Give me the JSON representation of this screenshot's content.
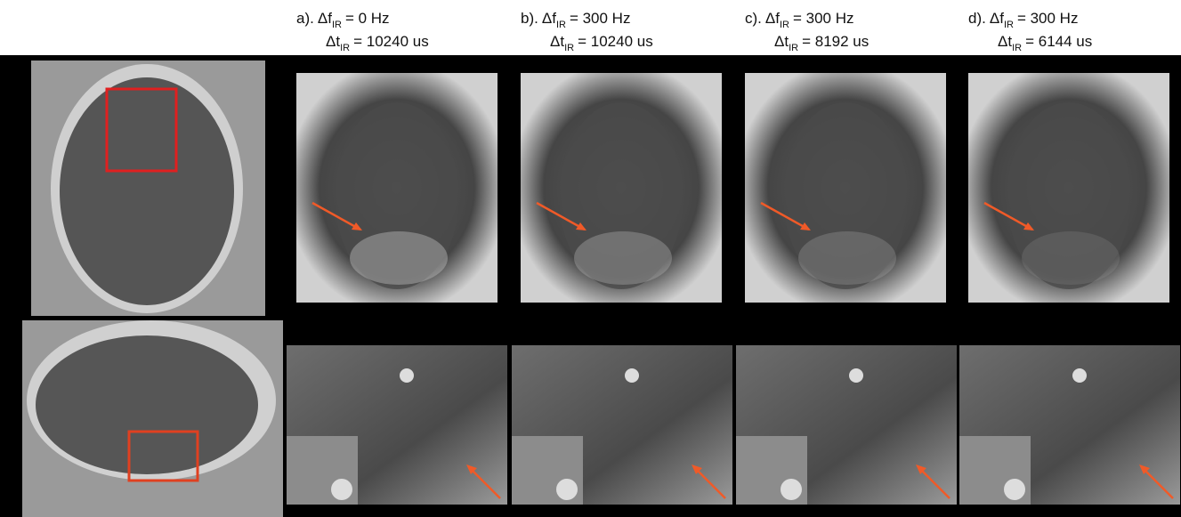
{
  "panels": [
    {
      "label": "a).",
      "freq_symbol": "Δf",
      "subscript": "IR",
      "freq_value": "= 0 Hz",
      "time_symbol": "Δt",
      "time_value": "= 10240 us"
    },
    {
      "label": "b).",
      "freq_symbol": "Δf",
      "subscript": "IR",
      "freq_value": "= 300 Hz",
      "time_symbol": "Δt",
      "time_value": "= 10240 us"
    },
    {
      "label": "c).",
      "freq_symbol": "Δf",
      "subscript": "IR",
      "freq_value": "= 300 Hz",
      "time_symbol": "Δt",
      "time_value": "= 8192 us"
    },
    {
      "label": "d).",
      "freq_symbol": "Δf",
      "subscript": "IR",
      "freq_value": "= 300 Hz",
      "time_symbol": "Δt",
      "time_value": "= 6144 us"
    }
  ]
}
